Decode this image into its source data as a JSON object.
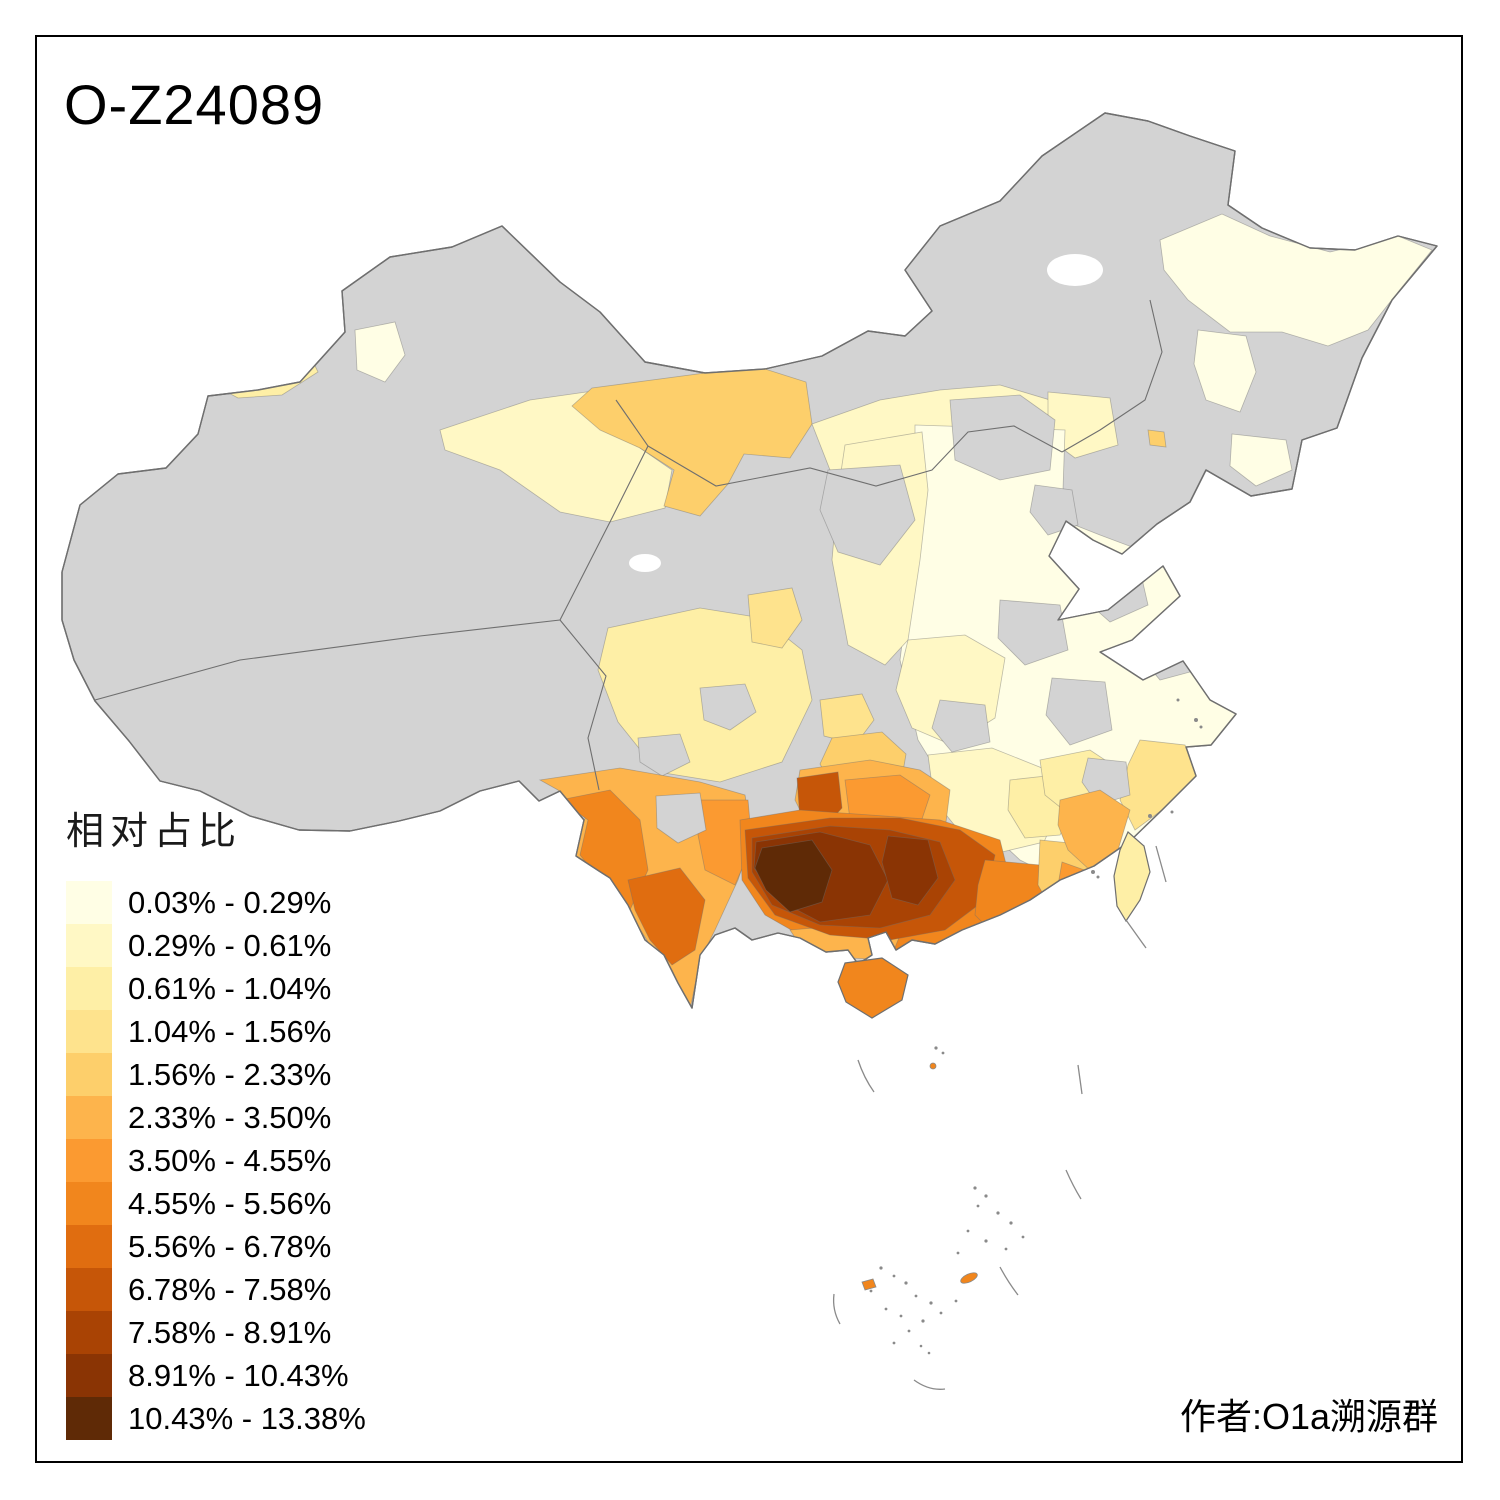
{
  "title": "O-Z24089",
  "attribution": "作者:O1a溯源群",
  "legend": {
    "title": "相对占比",
    "classes": [
      {
        "label": "0.03% - 0.29%",
        "color": "#FFFEE5"
      },
      {
        "label": "0.29% - 0.61%",
        "color": "#FFF8C5"
      },
      {
        "label": "0.61% - 1.04%",
        "color": "#FEEFA6"
      },
      {
        "label": "1.04% - 1.56%",
        "color": "#FEE38D"
      },
      {
        "label": "1.56% - 2.33%",
        "color": "#FDCF6B"
      },
      {
        "label": "2.33% - 3.50%",
        "color": "#FDB44C"
      },
      {
        "label": "3.50% - 4.55%",
        "color": "#FB9A31"
      },
      {
        "label": "4.55% - 5.56%",
        "color": "#F1861D"
      },
      {
        "label": "5.56% - 6.78%",
        "color": "#E06D10"
      },
      {
        "label": "6.78% - 7.58%",
        "color": "#C65608"
      },
      {
        "label": "7.58% - 8.91%",
        "color": "#A94304"
      },
      {
        "label": "8.91% - 10.43%",
        "color": "#8A3404"
      },
      {
        "label": "10.43% - 13.38%",
        "color": "#5F2A06"
      }
    ]
  },
  "map": {
    "na_color": "#D3D3D3",
    "border_color": "#6F6F6F",
    "island_color": "#8A8A8A",
    "lake_color": "#FFFFFF",
    "frame_color": "#000000",
    "background": "#FFFFFF",
    "regions": {
      "mainland": 0,
      "yili-valley": 3,
      "junggar-patch": 1,
      "altay-dot": 2,
      "hexi-corridor": 2,
      "alxa-band": 5,
      "north-plateau": 2,
      "jilin-west-pale": 2,
      "east-china": 1,
      "shanxi": 2,
      "henan-hubei": 2,
      "hunan-jiangxi": 2,
      "jiangxi-patch": 3,
      "sichuan-west": 3,
      "basin-orange": 4,
      "chongqing": 5,
      "gansu-south-orange": 4,
      "guizhou": 6,
      "guizhou-north-dark": 10,
      "guizhou-mid": 7,
      "yunnan-main": 6,
      "yunnan-west": 8,
      "yunnan-south": 9,
      "yunnan-east": 7,
      "guangxi-base": 8,
      "guangxi-coast": 6,
      "hotspot-outer": 10,
      "hotspot-mid": 11,
      "hotspot-dark": 12,
      "hotspot-dark2": 12,
      "hotspot-core": 13,
      "guangdong-west": 8,
      "guangdong-mid": 5,
      "fujian-coast": 6,
      "chaoshan": 7,
      "fujian-inland": 3,
      "zhejiang-coast": 4,
      "ne-pale": 1,
      "ne-pale2": 1,
      "jilin-pale": 1,
      "ne-orange-dot": 5,
      "hainan": 8,
      "taiwan": 3,
      "scs-island-1": 8,
      "scs-island-2": 8,
      "scs-island-3": 8,
      "grey-1": 0,
      "grey-2": 0,
      "grey-3": 0,
      "grey-4": 0,
      "grey-5": 0,
      "grey-6": 0,
      "grey-7": 0,
      "grey-8": 0,
      "grey-9": 0,
      "grey-10": 0,
      "grey-11": 0,
      "grey-12": 0,
      "pearl-delta-grey": 0
    }
  }
}
